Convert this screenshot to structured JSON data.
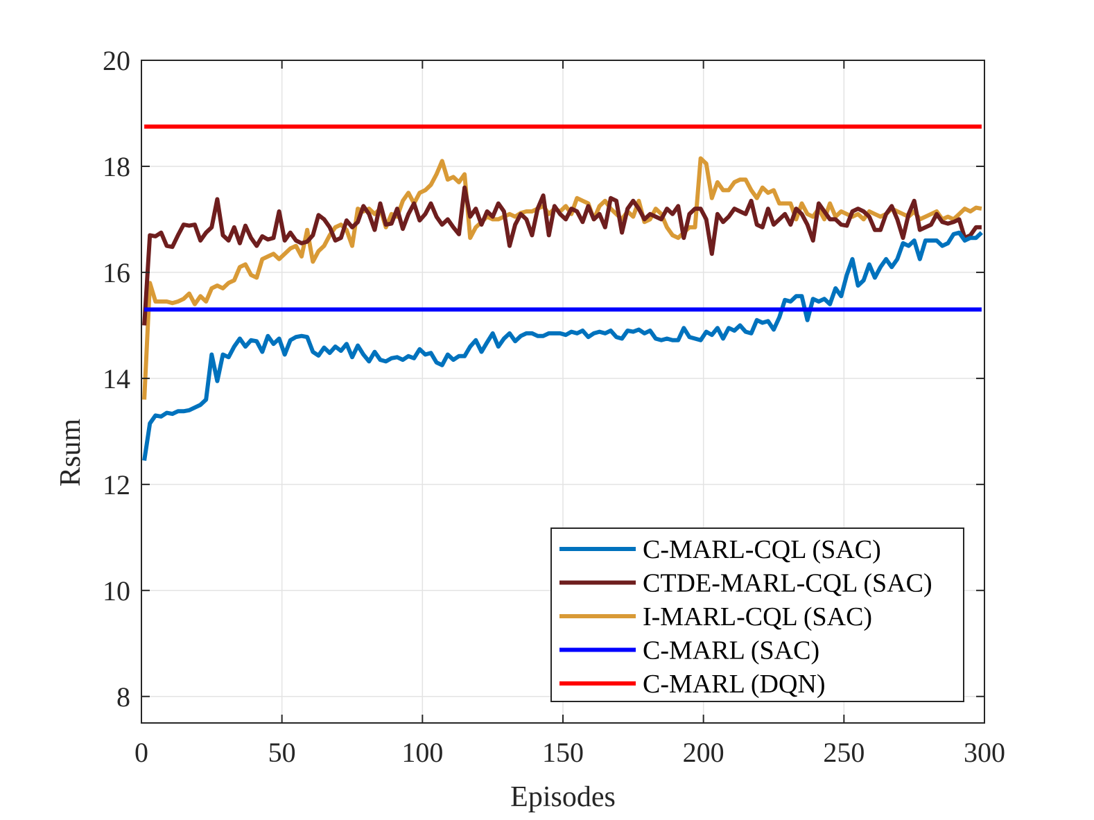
{
  "chart_data": {
    "type": "line",
    "title": "",
    "xlabel": "Episodes",
    "ylabel": "Rsum",
    "xlim": [
      0,
      300
    ],
    "ylim": [
      7.5,
      20
    ],
    "xticks": [
      0,
      50,
      100,
      150,
      200,
      250,
      300
    ],
    "yticks": [
      8,
      10,
      12,
      14,
      16,
      18,
      20
    ],
    "xtick_labels": [
      "0",
      "50",
      "100",
      "150",
      "200",
      "250",
      "300"
    ],
    "ytick_labels": [
      "8",
      "10",
      "12",
      "14",
      "16",
      "18",
      "20"
    ],
    "grid": true,
    "legend_position": "bottom-right",
    "series": [
      {
        "name": "C-MARL-CQL (SAC)",
        "color": "#0072BD",
        "x": [
          1,
          3,
          5,
          7,
          9,
          11,
          13,
          15,
          17,
          19,
          21,
          23,
          25,
          27,
          29,
          31,
          33,
          35,
          37,
          39,
          41,
          43,
          45,
          47,
          49,
          51,
          53,
          55,
          57,
          59,
          61,
          63,
          65,
          67,
          69,
          71,
          73,
          75,
          77,
          79,
          81,
          83,
          85,
          87,
          89,
          91,
          93,
          95,
          97,
          99,
          101,
          103,
          105,
          107,
          109,
          111,
          113,
          115,
          117,
          119,
          121,
          123,
          125,
          127,
          129,
          131,
          133,
          135,
          137,
          139,
          141,
          143,
          145,
          147,
          149,
          151,
          153,
          155,
          157,
          159,
          161,
          163,
          165,
          167,
          169,
          171,
          173,
          175,
          177,
          179,
          181,
          183,
          185,
          187,
          189,
          191,
          193,
          195,
          197,
          199,
          201,
          203,
          205,
          207,
          209,
          211,
          213,
          215,
          217,
          219,
          221,
          223,
          225,
          227,
          229,
          231,
          233,
          235,
          237,
          239,
          241,
          243,
          245,
          247,
          249,
          251,
          253,
          255,
          257,
          259,
          261,
          263,
          265,
          267,
          269,
          271,
          273,
          275,
          277,
          279,
          281,
          283,
          285,
          287,
          289,
          291,
          293,
          295,
          297,
          299
        ],
        "values": [
          12.45,
          13.15,
          13.3,
          13.28,
          13.35,
          13.33,
          13.38,
          13.38,
          13.4,
          13.45,
          13.5,
          13.6,
          14.45,
          13.95,
          14.45,
          14.4,
          14.6,
          14.75,
          14.6,
          14.72,
          14.7,
          14.5,
          14.8,
          14.65,
          14.75,
          14.45,
          14.72,
          14.78,
          14.8,
          14.78,
          14.5,
          14.43,
          14.58,
          14.48,
          14.6,
          14.52,
          14.65,
          14.4,
          14.62,
          14.45,
          14.32,
          14.5,
          14.35,
          14.32,
          14.38,
          14.4,
          14.35,
          14.42,
          14.38,
          14.55,
          14.45,
          14.48,
          14.3,
          14.25,
          14.45,
          14.35,
          14.42,
          14.42,
          14.6,
          14.72,
          14.5,
          14.68,
          14.85,
          14.6,
          14.75,
          14.85,
          14.7,
          14.8,
          14.85,
          14.85,
          14.8,
          14.8,
          14.85,
          14.85,
          14.85,
          14.82,
          14.88,
          14.85,
          14.9,
          14.78,
          14.85,
          14.88,
          14.85,
          14.9,
          14.78,
          14.75,
          14.9,
          14.88,
          14.92,
          14.85,
          14.9,
          14.75,
          14.72,
          14.75,
          14.72,
          14.72,
          14.95,
          14.78,
          14.75,
          14.72,
          14.88,
          14.82,
          14.95,
          14.75,
          14.95,
          14.9,
          15.0,
          14.88,
          14.85,
          15.1,
          15.05,
          15.08,
          14.92,
          15.15,
          15.48,
          15.45,
          15.55,
          15.55,
          15.1,
          15.5,
          15.45,
          15.5,
          15.4,
          15.7,
          15.55,
          15.95,
          16.25,
          15.75,
          15.85,
          16.15,
          15.9,
          16.1,
          16.25,
          16.1,
          16.25,
          16.55,
          16.5,
          16.6,
          16.25,
          16.6,
          16.6,
          16.6,
          16.5,
          16.55,
          16.72,
          16.75,
          16.6,
          16.65,
          16.65,
          16.75
        ]
      },
      {
        "name": "CTDE-MARL-CQL (SAC)",
        "color": "#6E1E1E",
        "x": [
          1,
          3,
          5,
          7,
          9,
          11,
          13,
          15,
          17,
          19,
          21,
          23,
          25,
          27,
          29,
          31,
          33,
          35,
          37,
          39,
          41,
          43,
          45,
          47,
          49,
          51,
          53,
          55,
          57,
          59,
          61,
          63,
          65,
          67,
          69,
          71,
          73,
          75,
          77,
          79,
          81,
          83,
          85,
          87,
          89,
          91,
          93,
          95,
          97,
          99,
          101,
          103,
          105,
          107,
          109,
          111,
          113,
          115,
          117,
          119,
          121,
          123,
          125,
          127,
          129,
          131,
          133,
          135,
          137,
          139,
          141,
          143,
          145,
          147,
          149,
          151,
          153,
          155,
          157,
          159,
          161,
          163,
          165,
          167,
          169,
          171,
          173,
          175,
          177,
          179,
          181,
          183,
          185,
          187,
          189,
          191,
          193,
          195,
          197,
          199,
          201,
          203,
          205,
          207,
          209,
          211,
          213,
          215,
          217,
          219,
          221,
          223,
          225,
          227,
          229,
          231,
          233,
          235,
          237,
          239,
          241,
          243,
          245,
          247,
          249,
          251,
          253,
          255,
          257,
          259,
          261,
          263,
          265,
          267,
          269,
          271,
          273,
          275,
          277,
          279,
          281,
          283,
          285,
          287,
          289,
          291,
          293,
          295,
          297,
          299
        ],
        "values": [
          15.0,
          16.7,
          16.68,
          16.75,
          16.5,
          16.48,
          16.7,
          16.9,
          16.88,
          16.9,
          16.6,
          16.75,
          16.85,
          17.38,
          16.7,
          16.6,
          16.85,
          16.55,
          16.88,
          16.65,
          16.5,
          16.68,
          16.62,
          16.65,
          17.15,
          16.6,
          16.75,
          16.6,
          16.55,
          16.58,
          16.7,
          17.08,
          17.0,
          16.85,
          16.6,
          16.65,
          16.98,
          16.85,
          16.95,
          17.25,
          17.1,
          16.8,
          17.3,
          16.9,
          16.92,
          17.2,
          16.82,
          17.1,
          17.3,
          16.98,
          17.1,
          17.3,
          17.05,
          16.9,
          17.0,
          16.85,
          16.72,
          17.6,
          17.05,
          17.2,
          16.9,
          17.15,
          17.05,
          17.3,
          17.15,
          16.5,
          16.9,
          17.1,
          17.0,
          16.7,
          17.2,
          17.45,
          16.7,
          17.25,
          17.1,
          17.0,
          17.2,
          17.15,
          16.95,
          17.25,
          17.0,
          17.1,
          16.85,
          17.4,
          17.35,
          16.75,
          17.2,
          17.35,
          17.2,
          17.0,
          17.1,
          17.05,
          17.0,
          17.2,
          17.1,
          17.25,
          16.65,
          17.1,
          17.2,
          17.2,
          17.0,
          16.35,
          17.1,
          16.95,
          17.05,
          17.2,
          17.15,
          17.1,
          17.35,
          16.9,
          16.85,
          17.2,
          16.9,
          17.0,
          17.1,
          16.9,
          17.2,
          17.1,
          16.9,
          16.6,
          17.3,
          17.15,
          17.0,
          17.0,
          16.9,
          16.88,
          17.15,
          17.2,
          17.15,
          17.05,
          16.8,
          16.8,
          17.1,
          17.25,
          17.0,
          16.65,
          17.1,
          17.35,
          16.8,
          16.85,
          16.9,
          17.1,
          16.95,
          16.92,
          16.95,
          17.0,
          16.65,
          16.7,
          16.85,
          16.85
        ]
      },
      {
        "name": "I-MARL-CQL (SAC)",
        "color": "#D99A36",
        "x": [
          1,
          3,
          5,
          7,
          9,
          11,
          13,
          15,
          17,
          19,
          21,
          23,
          25,
          27,
          29,
          31,
          33,
          35,
          37,
          39,
          41,
          43,
          45,
          47,
          49,
          51,
          53,
          55,
          57,
          59,
          61,
          63,
          65,
          67,
          69,
          71,
          73,
          75,
          77,
          79,
          81,
          83,
          85,
          87,
          89,
          91,
          93,
          95,
          97,
          99,
          101,
          103,
          105,
          107,
          109,
          111,
          113,
          115,
          117,
          119,
          121,
          123,
          125,
          127,
          129,
          131,
          133,
          135,
          137,
          139,
          141,
          143,
          145,
          147,
          149,
          151,
          153,
          155,
          157,
          159,
          161,
          163,
          165,
          167,
          169,
          171,
          173,
          175,
          177,
          179,
          181,
          183,
          185,
          187,
          189,
          191,
          193,
          195,
          197,
          199,
          201,
          203,
          205,
          207,
          209,
          211,
          213,
          215,
          217,
          219,
          221,
          223,
          225,
          227,
          229,
          231,
          233,
          235,
          237,
          239,
          241,
          243,
          245,
          247,
          249,
          251,
          253,
          255,
          257,
          259,
          261,
          263,
          265,
          267,
          269,
          271,
          273,
          275,
          277,
          279,
          281,
          283,
          285,
          287,
          289,
          291,
          293,
          295,
          297,
          299
        ],
        "values": [
          13.6,
          15.8,
          15.45,
          15.45,
          15.45,
          15.42,
          15.45,
          15.5,
          15.6,
          15.4,
          15.55,
          15.45,
          15.7,
          15.75,
          15.7,
          15.8,
          15.85,
          16.1,
          16.15,
          15.95,
          15.9,
          16.25,
          16.3,
          16.35,
          16.25,
          16.35,
          16.45,
          16.5,
          16.3,
          16.8,
          16.2,
          16.4,
          16.5,
          16.7,
          16.85,
          16.9,
          16.8,
          16.5,
          17.2,
          17.15,
          17.2,
          17.1,
          17.2,
          16.85,
          17.1,
          17.05,
          17.35,
          17.5,
          17.3,
          17.5,
          17.55,
          17.65,
          17.85,
          18.1,
          17.75,
          17.8,
          17.7,
          17.85,
          16.65,
          16.85,
          16.95,
          17.05,
          17.0,
          17.0,
          17.05,
          17.1,
          17.05,
          17.12,
          17.15,
          17.15,
          17.2,
          17.25,
          17.1,
          17.2,
          17.15,
          17.25,
          17.1,
          17.4,
          17.35,
          17.3,
          17.0,
          17.25,
          17.35,
          17.2,
          17.1,
          17.0,
          17.15,
          17.05,
          17.35,
          16.95,
          17.0,
          17.2,
          17.1,
          16.85,
          16.7,
          16.65,
          16.75,
          16.85,
          16.85,
          18.15,
          18.05,
          17.4,
          17.7,
          17.55,
          17.55,
          17.7,
          17.75,
          17.75,
          17.55,
          17.4,
          17.6,
          17.5,
          17.55,
          17.3,
          17.3,
          17.3,
          17.0,
          17.3,
          17.1,
          17.05,
          17.2,
          17.0,
          17.3,
          17.05,
          17.15,
          17.1,
          17.05,
          17.1,
          17.0,
          17.15,
          17.1,
          17.05,
          17.1,
          17.2,
          17.15,
          17.1,
          17.05,
          17.15,
          17.0,
          17.05,
          17.1,
          17.15,
          17.0,
          17.05,
          17.0,
          17.1,
          17.2,
          17.15,
          17.22,
          17.2
        ]
      },
      {
        "name": "C-MARL (SAC)",
        "color": "#0000FF",
        "x": [
          1,
          299
        ],
        "values": [
          15.3,
          15.3
        ]
      },
      {
        "name": "C-MARL (DQN)",
        "color": "#FF0000",
        "x": [
          1,
          299
        ],
        "values": [
          18.75,
          18.75
        ]
      }
    ]
  }
}
